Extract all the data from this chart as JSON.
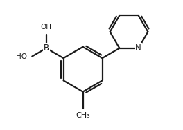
{
  "background": "#ffffff",
  "line_color": "#1a1a1a",
  "lw": 1.6,
  "fs": 8.0,
  "figsize": [
    2.64,
    1.88
  ],
  "dpi": 100,
  "xlim": [
    -1.0,
    9.0
  ],
  "ylim": [
    -1.0,
    6.5
  ]
}
